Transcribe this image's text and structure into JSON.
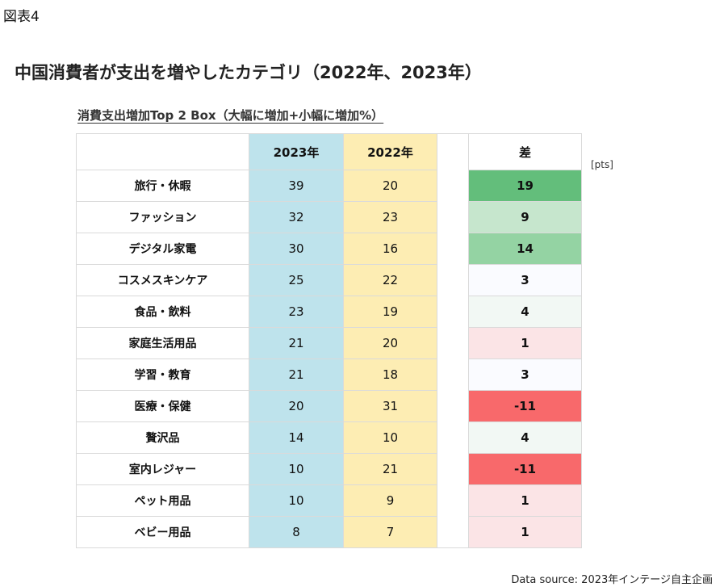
{
  "figure_label": "図表4",
  "chart_data": {
    "type": "table",
    "title": "中国消費者が支出を増やしたカテゴリ（2022年、2023年）",
    "subtitle": "消費支出増加Top 2 Box（大幅に増加+小幅に増加%）",
    "columns": [
      "2023年",
      "2022年",
      "差"
    ],
    "unit": "[pts]",
    "rows": [
      {
        "category": "旅行・休暇",
        "y2023": "39",
        "y2022": "20",
        "diff": "19",
        "color": "#63be7b"
      },
      {
        "category": "ファッション",
        "y2023": "32",
        "y2022": "23",
        "diff": "9",
        "color": "#c6e6cd"
      },
      {
        "category": "デジタル家電",
        "y2023": "30",
        "y2022": "16",
        "diff": "14",
        "color": "#94d3a3"
      },
      {
        "category": "コスメスキンケア",
        "y2023": "25",
        "y2022": "22",
        "diff": "3",
        "color": "#fafbff"
      },
      {
        "category": "食品・飲料",
        "y2023": "23",
        "y2022": "19",
        "diff": "4",
        "color": "#f2f8f4"
      },
      {
        "category": "家庭生活用品",
        "y2023": "21",
        "y2022": "20",
        "diff": "1",
        "color": "#fbe4e6"
      },
      {
        "category": "学習・教育",
        "y2023": "21",
        "y2022": "18",
        "diff": "3",
        "color": "#fafbff"
      },
      {
        "category": "医療・保健",
        "y2023": "20",
        "y2022": "31",
        "diff": "-11",
        "color": "#f8696b"
      },
      {
        "category": "贅沢品",
        "y2023": "14",
        "y2022": "10",
        "diff": "4",
        "color": "#f2f8f4"
      },
      {
        "category": "室内レジャー",
        "y2023": "10",
        "y2022": "21",
        "diff": "-11",
        "color": "#f8696b"
      },
      {
        "category": "ペット用品",
        "y2023": "10",
        "y2022": "9",
        "diff": "1",
        "color": "#fbe4e6"
      },
      {
        "category": "ベビー用品",
        "y2023": "8",
        "y2022": "7",
        "diff": "1",
        "color": "#fbe4e6"
      }
    ]
  },
  "source": "Data source: 2023年インテージ自主企画"
}
